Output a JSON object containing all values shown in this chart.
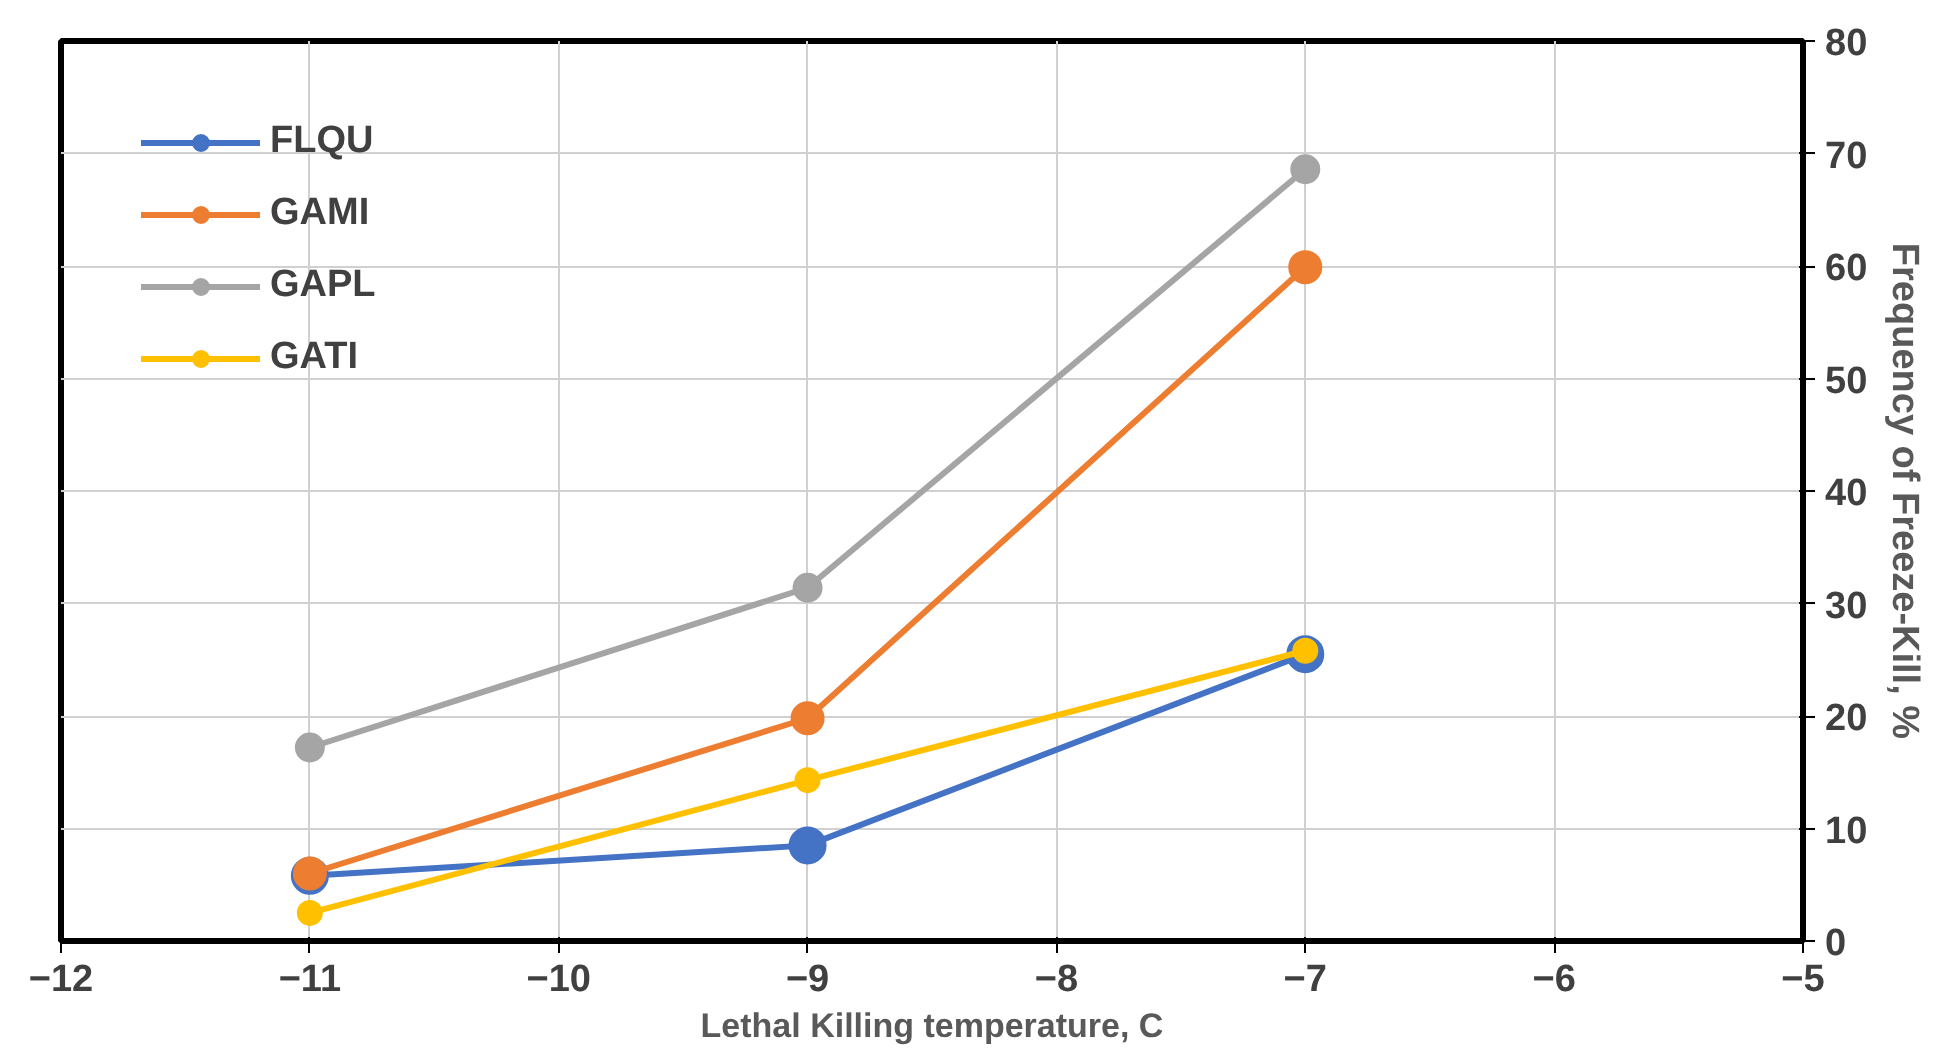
{
  "chart_data": {
    "type": "line",
    "xlabel": "Lethal Killing temperature, C",
    "ylabel": "Frequency of Freeze-Kill, %",
    "x": [
      -11,
      -9,
      -7
    ],
    "xlim": [
      -12,
      -5
    ],
    "xticks": [
      -12,
      -11,
      -10,
      -9,
      -8,
      -7,
      -6,
      -5
    ],
    "ylim": [
      0,
      80
    ],
    "yticks": [
      0,
      10,
      20,
      30,
      40,
      50,
      60,
      70,
      80
    ],
    "grid": true,
    "legend": "top left",
    "marker": "circle",
    "line_style": "solid",
    "series": [
      {
        "name": "FLQU",
        "color": "#4472c4",
        "values": [
          5.8,
          8.5,
          25.5
        ]
      },
      {
        "name": "GAMI",
        "color": "#ed7d31",
        "values": [
          6,
          19.8,
          59.9
        ]
      },
      {
        "name": "GAPL",
        "color": "#a5a5a5",
        "values": [
          17.2,
          31.4,
          68.6
        ]
      },
      {
        "name": "GATI",
        "color": "#ffc000",
        "values": [
          2.5,
          14.3,
          25.8
        ]
      }
    ]
  }
}
